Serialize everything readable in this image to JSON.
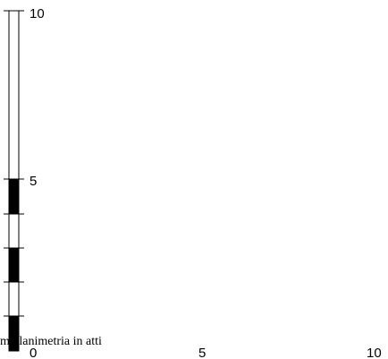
{
  "scale_bar": {
    "labels": {
      "bottom": "0",
      "mid": "5",
      "top": "10"
    }
  },
  "x_axis": {
    "labels": {
      "zero": "0",
      "mid": "5",
      "end": "10"
    }
  },
  "caption": "m  planimetria in atti",
  "colors": {
    "fill_dark": "#000000",
    "fill_light": "#ffffff",
    "stroke": "#000000"
  }
}
